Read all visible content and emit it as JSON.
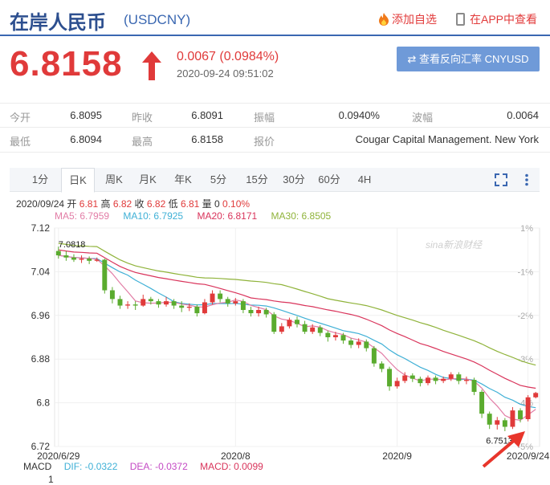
{
  "header": {
    "title": "在岸人民币",
    "code": "(USDCNY)",
    "add_fav": "添加自选",
    "app_view": "在APP中查看"
  },
  "quote": {
    "price": "6.8158",
    "change": "0.0067 (0.0984%)",
    "datetime": "2020-09-24 09:51:02",
    "reverse_button": "⇄ 查看反向汇率 CNYUSD"
  },
  "stats": {
    "rows": [
      [
        {
          "label": "今开",
          "value": "6.8095"
        },
        {
          "label": "昨收",
          "value": "6.8091"
        },
        {
          "label": "振幅",
          "value": "0.0940%"
        },
        {
          "label": "波幅",
          "value": "0.0064"
        }
      ],
      [
        {
          "label": "最低",
          "value": "6.8094"
        },
        {
          "label": "最高",
          "value": "6.8158"
        },
        {
          "label": "报价",
          "value": "Cougar Capital Management. New York"
        }
      ]
    ]
  },
  "tabs": [
    "1分",
    "日K",
    "周K",
    "月K",
    "年K",
    "5分",
    "15分",
    "30分",
    "60分",
    "4H"
  ],
  "active_tab": "日K",
  "ohlc": {
    "date": "2020/09/24",
    "open_label": "开",
    "open": "6.81",
    "high_label": "高",
    "high": "6.82",
    "close_label": "收",
    "close": "6.82",
    "low_label": "低",
    "low": "6.81",
    "volume_label": "量",
    "volume": "0",
    "pct": "0.10%"
  },
  "ma_legend": [
    {
      "text": "MA5: 6.7959",
      "color": "#e27da6"
    },
    {
      "text": "MA10: 6.7925",
      "color": "#3fb0d6"
    },
    {
      "text": "MA20: 6.8171",
      "color": "#d9345b"
    },
    {
      "text": "MA30: 6.8505",
      "color": "#8fb33a"
    }
  ],
  "macd": {
    "label": "MACD",
    "dif": "DIF: -0.0322",
    "dea": "DEA: -0.0372",
    "macd": "MACD: 0.0099",
    "axis_value": "1"
  },
  "watermark": "sina新浪财经",
  "colors": {
    "up": "#e03a3a",
    "down": "#5aab2e",
    "accent": "#3a67b1"
  },
  "chart_data": {
    "type": "candlestick",
    "y_ticks": [
      "7.12",
      "7.04",
      "6.96",
      "6.88",
      "6.8",
      "6.72"
    ],
    "ylim": [
      6.72,
      7.12
    ],
    "pct_ticks": [
      "1%",
      "-1%",
      "-2%",
      "-3%",
      "-4%",
      "-5%"
    ],
    "x_ticks": [
      {
        "label": "2020/6/29",
        "index": 0
      },
      {
        "label": "2020/8",
        "index": 23
      },
      {
        "label": "2020/9",
        "index": 44
      },
      {
        "label": "2020/9/24",
        "index": 61
      }
    ],
    "annotations": [
      {
        "label": "7.0818",
        "index": 0,
        "value": 7.0818
      },
      {
        "label": "6.7513",
        "index": 57,
        "value": 6.7513
      }
    ],
    "candles": [
      [
        7.078,
        7.07,
        7.086,
        7.064
      ],
      [
        7.07,
        7.066,
        7.078,
        7.06
      ],
      [
        7.066,
        7.062,
        7.072,
        7.058
      ],
      [
        7.062,
        7.064,
        7.07,
        7.056
      ],
      [
        7.064,
        7.06,
        7.068,
        7.054
      ],
      [
        7.06,
        7.062,
        7.066,
        7.058
      ],
      [
        7.062,
        7.006,
        7.064,
        7.0
      ],
      [
        7.006,
        6.99,
        7.012,
        6.982
      ],
      [
        6.99,
        6.978,
        6.996,
        6.972
      ],
      [
        6.978,
        6.98,
        6.986,
        6.972
      ],
      [
        6.98,
        6.978,
        6.986,
        6.97
      ],
      [
        6.978,
        6.99,
        6.998,
        6.976
      ],
      [
        6.99,
        6.986,
        6.994,
        6.98
      ],
      [
        6.986,
        6.98,
        6.99,
        6.974
      ],
      [
        6.98,
        6.986,
        6.994,
        6.976
      ],
      [
        6.986,
        6.978,
        6.99,
        6.972
      ],
      [
        6.978,
        6.974,
        6.986,
        6.966
      ],
      [
        6.974,
        6.976,
        6.982,
        6.968
      ],
      [
        6.976,
        6.964,
        6.98,
        6.958
      ],
      [
        6.964,
        6.984,
        6.99,
        6.962
      ],
      [
        6.984,
        7.0,
        7.006,
        6.98
      ],
      [
        7.0,
        6.99,
        7.006,
        6.984
      ],
      [
        6.99,
        6.982,
        6.994,
        6.976
      ],
      [
        6.982,
        6.986,
        6.992,
        6.978
      ],
      [
        6.986,
        6.97,
        6.99,
        6.964
      ],
      [
        6.97,
        6.964,
        6.976,
        6.958
      ],
      [
        6.964,
        6.97,
        6.976,
        6.958
      ],
      [
        6.97,
        6.962,
        6.974,
        6.956
      ],
      [
        6.962,
        6.93,
        6.966,
        6.926
      ],
      [
        6.93,
        6.94,
        6.946,
        6.926
      ],
      [
        6.94,
        6.952,
        6.956,
        6.936
      ],
      [
        6.952,
        6.944,
        6.958,
        6.938
      ],
      [
        6.944,
        6.93,
        6.95,
        6.926
      ],
      [
        6.93,
        6.938,
        6.944,
        6.926
      ],
      [
        6.938,
        6.928,
        6.942,
        6.922
      ],
      [
        6.928,
        6.92,
        6.932,
        6.912
      ],
      [
        6.92,
        6.924,
        6.93,
        6.914
      ],
      [
        6.924,
        6.914,
        6.928,
        6.908
      ],
      [
        6.914,
        6.906,
        6.918,
        6.9
      ],
      [
        6.906,
        6.912,
        6.918,
        6.9
      ],
      [
        6.912,
        6.9,
        6.916,
        6.894
      ],
      [
        6.9,
        6.872,
        6.904,
        6.866
      ],
      [
        6.872,
        6.862,
        6.876,
        6.856
      ],
      [
        6.862,
        6.83,
        6.866,
        6.822
      ],
      [
        6.83,
        6.84,
        6.846,
        6.826
      ],
      [
        6.84,
        6.85,
        6.856,
        6.836
      ],
      [
        6.85,
        6.844,
        6.854,
        6.838
      ],
      [
        6.844,
        6.836,
        6.848,
        6.83
      ],
      [
        6.836,
        6.846,
        6.85,
        6.832
      ],
      [
        6.846,
        6.84,
        6.85,
        6.834
      ],
      [
        6.84,
        6.844,
        6.848,
        6.836
      ],
      [
        6.844,
        6.852,
        6.856,
        6.84
      ],
      [
        6.852,
        6.84,
        6.856,
        6.834
      ],
      [
        6.84,
        6.842,
        6.848,
        6.834
      ],
      [
        6.842,
        6.82,
        6.846,
        6.814
      ],
      [
        6.82,
        6.78,
        6.824,
        6.772
      ],
      [
        6.78,
        6.76,
        6.784,
        6.752
      ],
      [
        6.76,
        6.768,
        6.774,
        6.751
      ],
      [
        6.768,
        6.756,
        6.772,
        6.748
      ],
      [
        6.756,
        6.786,
        6.792,
        6.752
      ],
      [
        6.786,
        6.77,
        6.79,
        6.764
      ],
      [
        6.77,
        6.81,
        6.814,
        6.766
      ],
      [
        6.81,
        6.818,
        6.82,
        6.808
      ]
    ]
  }
}
